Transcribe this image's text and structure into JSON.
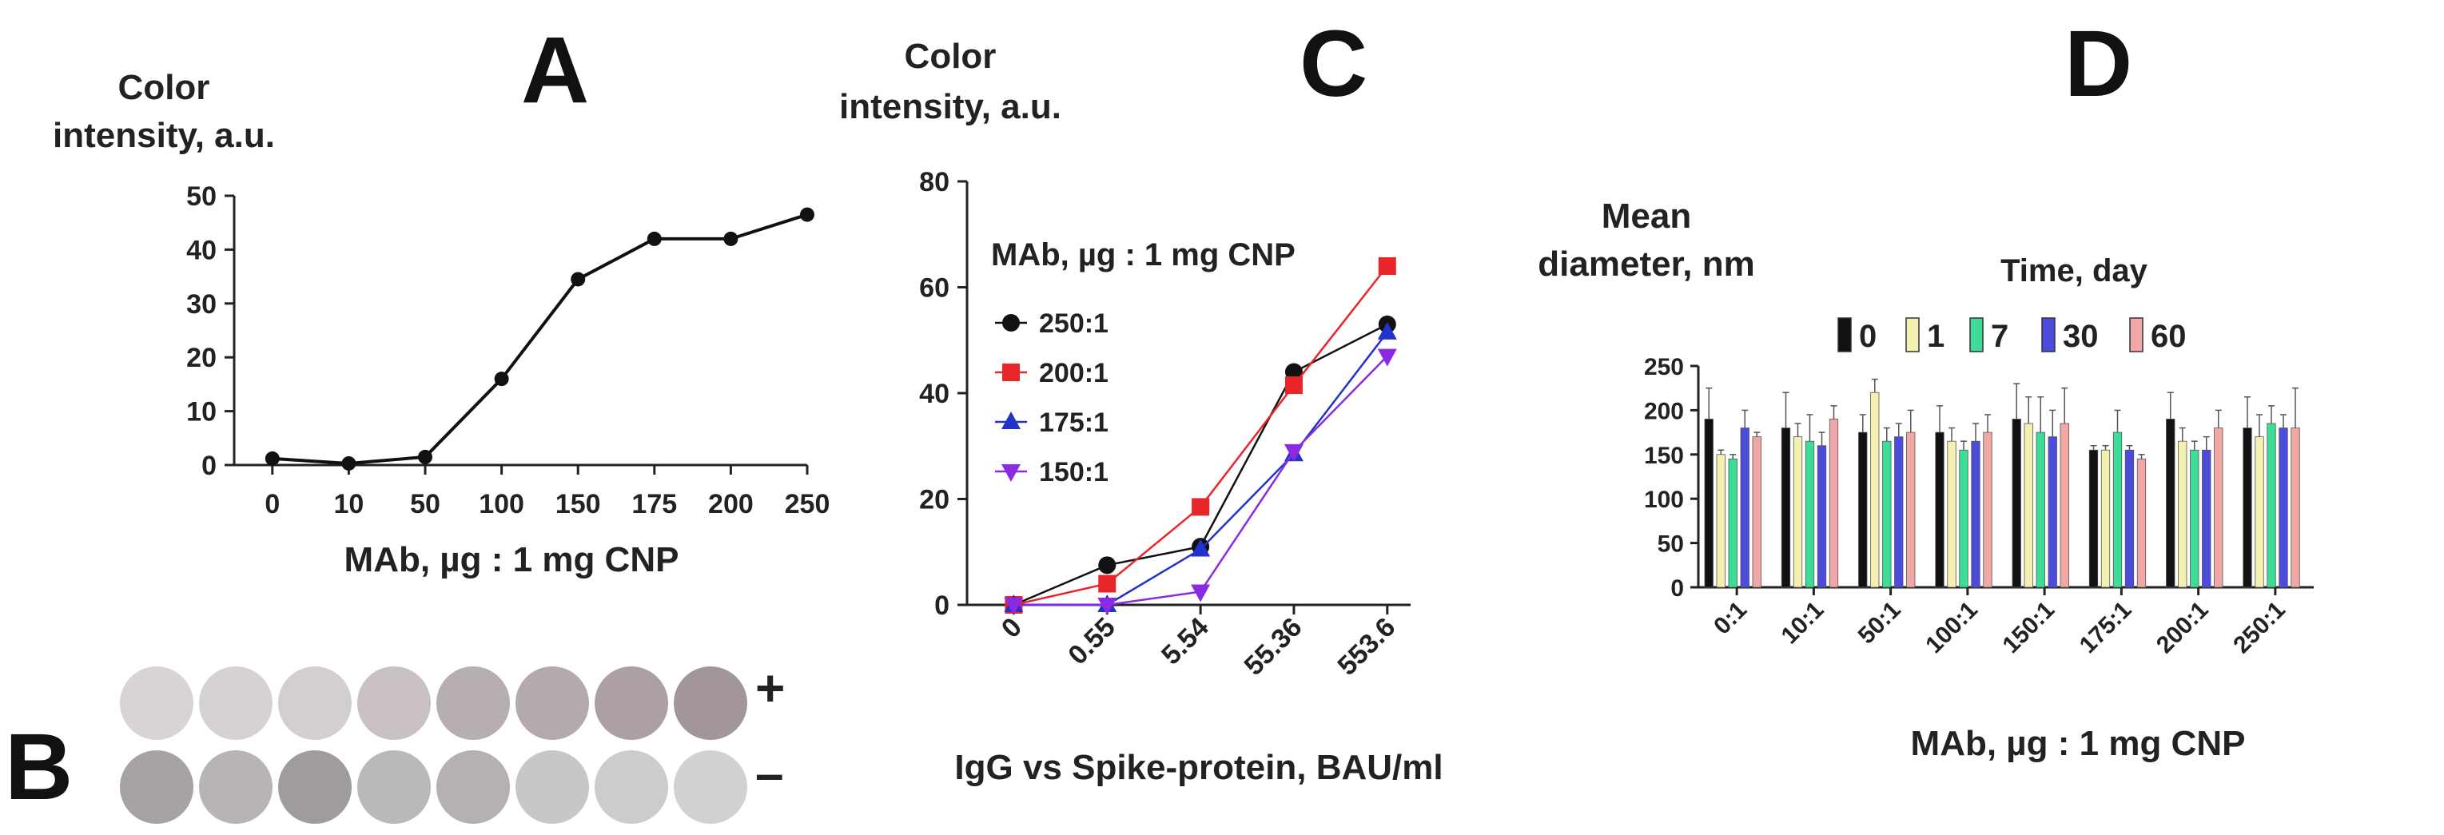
{
  "panel_a": {
    "letter": "A",
    "ylabel_line1": "Color",
    "ylabel_line2": "intensity, a.u.",
    "xlabel": "MAb, µg : 1 mg CNP"
  },
  "panel_b": {
    "letter": "B",
    "plus_label": "+",
    "minus_label": "–",
    "wells_top": [
      "#d8d4d6",
      "#d6d2d4",
      "#d3cfd1",
      "#c8c0c4",
      "#b7aeb2",
      "#b3a9ae",
      "#ad9fa6",
      "#a2959c"
    ],
    "wells_bottom": [
      "#a7a2a5",
      "#b8b4b6",
      "#a09b9e",
      "#bbb8ba",
      "#b5b1b3",
      "#c9c6c8",
      "#cecbcd",
      "#d3d0d2"
    ]
  },
  "panel_c": {
    "letter": "C",
    "ylabel_line1": "Color",
    "ylabel_line2": "intensity, a.u.",
    "legend_title": "MAb, µg : 1 mg CNP",
    "xlabel": "IgG vs Spike-protein, BAU/ml"
  },
  "panel_d": {
    "letter": "D",
    "ylabel_line1": "Mean",
    "ylabel_line2": "diameter, nm",
    "legend_title": "Time, day",
    "xlabel": "MAb, µg : 1 mg CNP"
  },
  "chart_data": [
    {
      "id": "A",
      "type": "line",
      "title": "",
      "xlabel": "MAb, µg : 1 mg CNP",
      "ylabel": "Color intensity, a.u.",
      "categories": [
        "0",
        "10",
        "50",
        "100",
        "150",
        "175",
        "200",
        "250"
      ],
      "series": [
        {
          "name": "Color intensity",
          "color": "#111111",
          "values": [
            1.2,
            0.3,
            1.5,
            16,
            34.5,
            42,
            42,
            46.5
          ]
        }
      ],
      "ylim": [
        0,
        50
      ],
      "yticks": [
        0,
        10,
        20,
        30,
        40,
        50
      ]
    },
    {
      "id": "C",
      "type": "line",
      "title": "",
      "xlabel": "IgG vs Spike-protein, BAU/ml",
      "ylabel": "Color intensity, a.u.",
      "legend_title": "MAb, µg : 1 mg CNP",
      "categories": [
        "0",
        "0.55",
        "5.54",
        "55.36",
        "553.6"
      ],
      "series": [
        {
          "name": "250:1",
          "color": "#111111",
          "marker": "circle",
          "values": [
            0,
            7.5,
            11,
            44,
            53
          ]
        },
        {
          "name": "200:1",
          "color": "#e8262a",
          "marker": "square",
          "values": [
            0,
            4,
            18.5,
            41.5,
            64
          ]
        },
        {
          "name": "175:1",
          "color": "#2233cc",
          "marker": "triangle-up",
          "values": [
            0,
            0,
            10.5,
            28.5,
            51.5
          ]
        },
        {
          "name": "150:1",
          "color": "#8a2be2",
          "marker": "triangle-down",
          "values": [
            0,
            0,
            2.5,
            29,
            47
          ]
        }
      ],
      "ylim": [
        0,
        80
      ],
      "yticks": [
        0,
        20,
        40,
        60,
        80
      ]
    },
    {
      "id": "D",
      "type": "bar",
      "title": "",
      "xlabel": "MAb, µg : 1 mg CNP",
      "ylabel": "Mean diameter, nm",
      "legend_title": "Time, day",
      "categories": [
        "0:1",
        "10:1",
        "50:1",
        "100:1",
        "150:1",
        "175:1",
        "200:1",
        "250:1"
      ],
      "series": [
        {
          "name": "0",
          "color": "#111111",
          "values": [
            190,
            180,
            175,
            175,
            190,
            155,
            190,
            180
          ],
          "errors": [
            35,
            40,
            20,
            30,
            40,
            5,
            30,
            35
          ]
        },
        {
          "name": "1",
          "color": "#f3f0b0",
          "values": [
            150,
            170,
            220,
            165,
            185,
            155,
            165,
            170
          ],
          "errors": [
            5,
            15,
            15,
            15,
            30,
            5,
            15,
            25
          ]
        },
        {
          "name": "7",
          "color": "#3ddc97",
          "values": [
            145,
            165,
            165,
            155,
            175,
            175,
            155,
            185
          ],
          "errors": [
            5,
            30,
            15,
            10,
            40,
            25,
            10,
            20
          ]
        },
        {
          "name": "30",
          "color": "#4b4bdc",
          "values": [
            180,
            160,
            170,
            165,
            170,
            155,
            155,
            180
          ],
          "errors": [
            20,
            15,
            15,
            20,
            30,
            5,
            15,
            15
          ]
        },
        {
          "name": "60",
          "color": "#f2a7a7",
          "values": [
            170,
            190,
            175,
            175,
            185,
            145,
            180,
            180
          ],
          "errors": [
            5,
            15,
            25,
            20,
            40,
            5,
            20,
            45
          ]
        }
      ],
      "ylim": [
        0,
        250
      ],
      "yticks": [
        0,
        50,
        100,
        150,
        200,
        250
      ]
    }
  ]
}
